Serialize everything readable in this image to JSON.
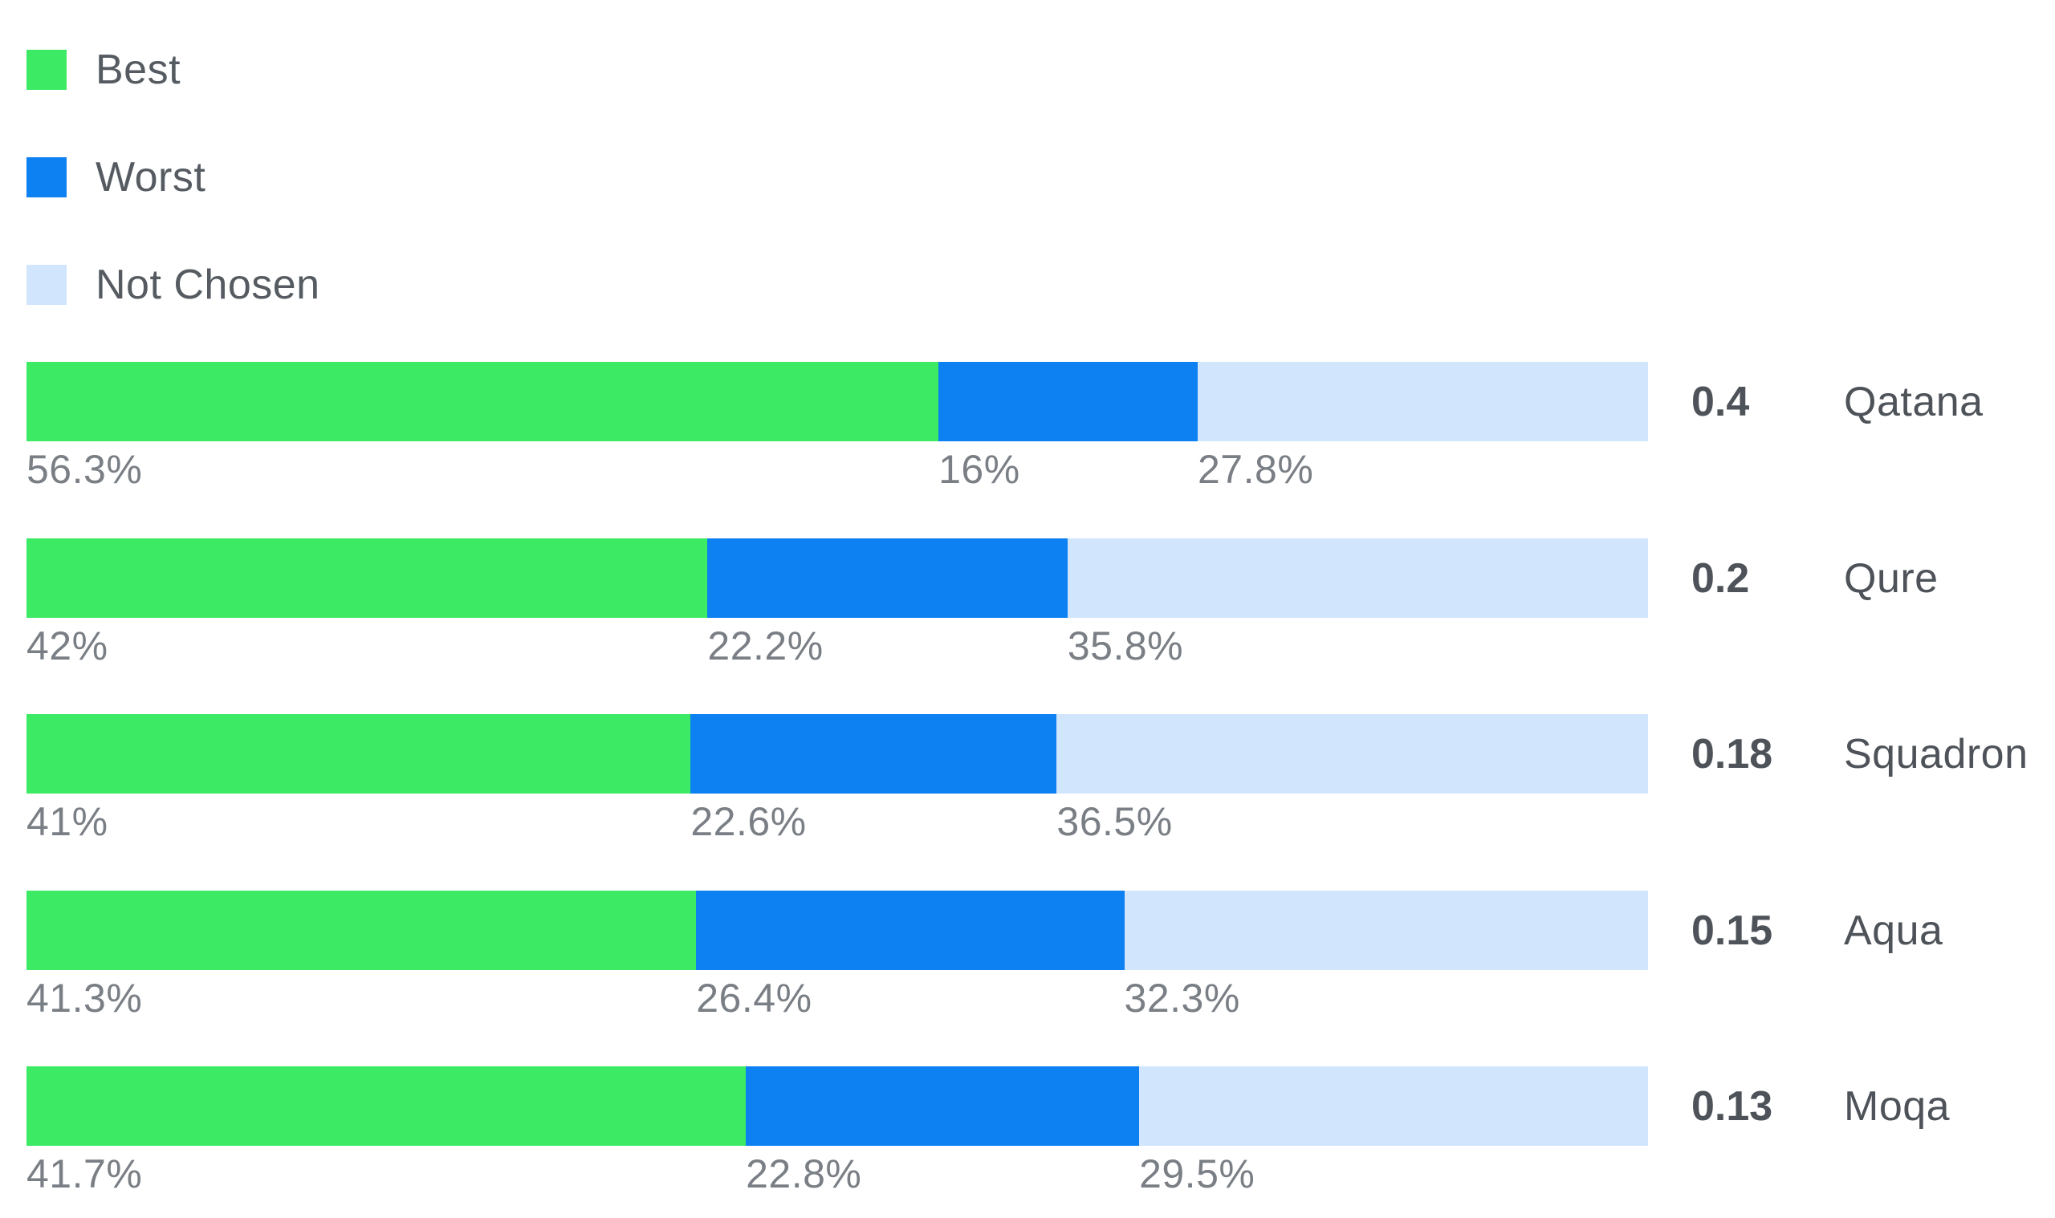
{
  "colors": {
    "best": "#3dea64",
    "worst": "#0d80f2",
    "not_chosen": "#d1e5fd"
  },
  "legend": [
    {
      "key": "best",
      "label": "Best"
    },
    {
      "key": "worst",
      "label": "Worst"
    },
    {
      "key": "not_chosen",
      "label": "Not Chosen"
    }
  ],
  "chart_data": {
    "type": "bar",
    "orientation": "horizontal",
    "stacked": true,
    "categories": [
      "Qatana",
      "Qure",
      "Squadron",
      "Aqua",
      "Moqa"
    ],
    "scores": [
      "0.4",
      "0.2",
      "0.18",
      "0.15",
      "0.13"
    ],
    "series": [
      {
        "name": "Best",
        "values": [
          56.3,
          42,
          41,
          41.3,
          41.7
        ]
      },
      {
        "name": "Worst",
        "values": [
          16,
          22.2,
          22.6,
          26.4,
          22.8
        ]
      },
      {
        "name": "Not Chosen",
        "values": [
          27.8,
          35.8,
          36.5,
          32.3,
          29.5
        ]
      }
    ],
    "value_labels": [
      [
        "56.3%",
        "16%",
        "27.8%"
      ],
      [
        "42%",
        "22.2%",
        "35.8%"
      ],
      [
        "41%",
        "22.6%",
        "36.5%"
      ],
      [
        "41.3%",
        "26.4%",
        "32.3%"
      ],
      [
        "41.7%",
        "22.8%",
        "29.5%"
      ]
    ],
    "legend_position": "top-left",
    "grid": false
  }
}
